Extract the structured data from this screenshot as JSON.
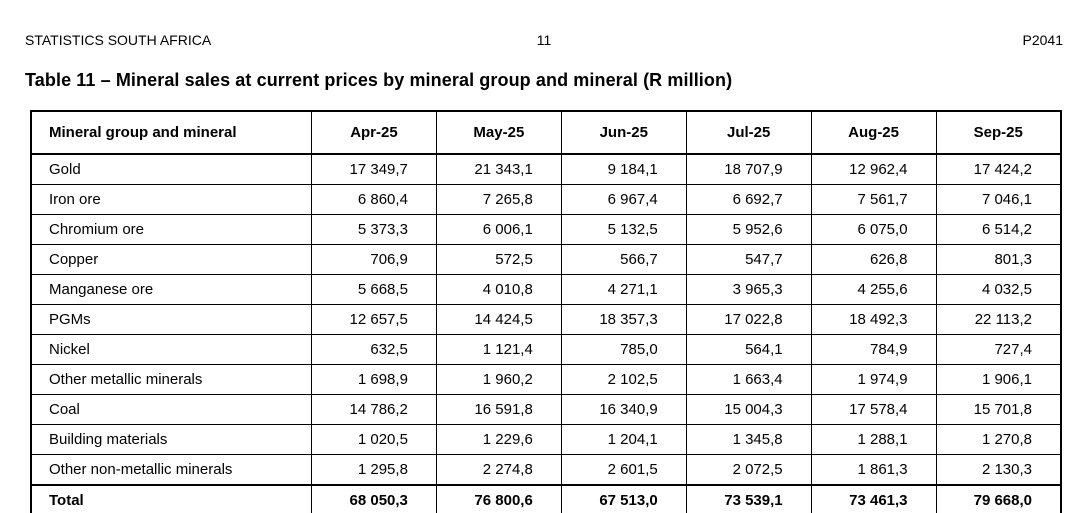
{
  "page_header": {
    "publication_name": "STATISTICS SOUTH AFRICA",
    "page_number": "11",
    "report_code": "P2041"
  },
  "title": "Table 11 – Mineral sales at current prices by mineral group and mineral (R million)",
  "table": {
    "label_header": "Mineral group and mineral",
    "month_headers": [
      "Apr-25",
      "May-25",
      "Jun-25",
      "Jul-25",
      "Aug-25",
      "Sep-25"
    ],
    "rows": [
      {
        "label": "Gold",
        "bold": false,
        "values": [
          "17 349,7",
          "21 343,1",
          "9 184,1",
          "18 707,9",
          "12 962,4",
          "17 424,2"
        ]
      },
      {
        "label": "Iron ore",
        "bold": false,
        "values": [
          "6 860,4",
          "7 265,8",
          "6 967,4",
          "6 692,7",
          "7 561,7",
          "7 046,1"
        ]
      },
      {
        "label": "Chromium ore",
        "bold": false,
        "values": [
          "5 373,3",
          "6 006,1",
          "5 132,5",
          "5 952,6",
          "6 075,0",
          "6 514,2"
        ]
      },
      {
        "label": "Copper",
        "bold": false,
        "values": [
          "706,9",
          "572,5",
          "566,7",
          "547,7",
          "626,8",
          "801,3"
        ]
      },
      {
        "label": "Manganese ore",
        "bold": false,
        "values": [
          "5 668,5",
          "4 010,8",
          "4 271,1",
          "3 965,3",
          "4 255,6",
          "4 032,5"
        ]
      },
      {
        "label": "PGMs",
        "bold": false,
        "values": [
          "12 657,5",
          "14 424,5",
          "18 357,3",
          "17 022,8",
          "18 492,3",
          "22 113,2"
        ]
      },
      {
        "label": "Nickel",
        "bold": false,
        "values": [
          "632,5",
          "1 121,4",
          "785,0",
          "564,1",
          "784,9",
          "727,4"
        ]
      },
      {
        "label": "Other metallic minerals",
        "bold": false,
        "values": [
          "1 698,9",
          "1 960,2",
          "2 102,5",
          "1 663,4",
          "1 974,9",
          "1 906,1"
        ]
      },
      {
        "label": "Coal",
        "bold": false,
        "values": [
          "14 786,2",
          "16 591,8",
          "16 340,9",
          "15 004,3",
          "17 578,4",
          "15 701,8"
        ]
      },
      {
        "label": "Building materials",
        "bold": false,
        "values": [
          "1 020,5",
          "1 229,6",
          "1 204,1",
          "1 345,8",
          "1 288,1",
          "1 270,8"
        ]
      },
      {
        "label": "Other non-metallic minerals",
        "bold": false,
        "values": [
          "1 295,8",
          "2 274,8",
          "2 601,5",
          "2 072,5",
          "1 861,3",
          "2 130,3"
        ]
      },
      {
        "label": "Total",
        "bold": true,
        "values": [
          "68 050,3",
          "76 800,6",
          "67 513,0",
          "73 539,1",
          "73 461,3",
          "79 668,0"
        ]
      }
    ]
  }
}
